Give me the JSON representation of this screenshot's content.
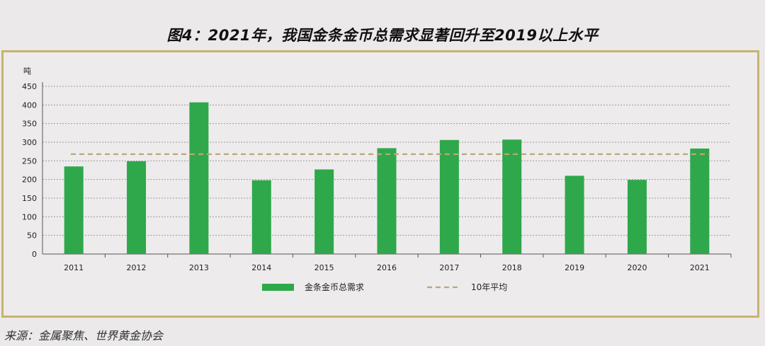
{
  "figure_title": "图4：2021年，我国金条金币总需求显著回升至2019以上水平",
  "source_note": "来源：金属聚焦、世界黄金协会",
  "colors": {
    "bar": "#2ea84a",
    "avg_line": "#b9a77a",
    "frame": "#c8b26e"
  },
  "chart_data": {
    "type": "bar",
    "title": "图4：2021年，我国金条金币总需求显著回升至2019以上水平",
    "ylabel": "吨",
    "xlabel": "",
    "categories": [
      "2011",
      "2012",
      "2013",
      "2014",
      "2015",
      "2016",
      "2017",
      "2018",
      "2019",
      "2020",
      "2021"
    ],
    "series": [
      {
        "name": "金条金币总需求",
        "values": [
          235,
          249,
          407,
          198,
          227,
          284,
          306,
          307,
          210,
          199,
          283
        ]
      }
    ],
    "reference_lines": [
      {
        "name": "10年平均",
        "value": 268,
        "style": "dashed"
      }
    ],
    "ylim": [
      0,
      450
    ],
    "yticks": [
      0,
      50,
      100,
      150,
      200,
      250,
      300,
      350,
      400,
      450
    ],
    "grid": "horizontal-dashed",
    "legend": "bottom"
  }
}
